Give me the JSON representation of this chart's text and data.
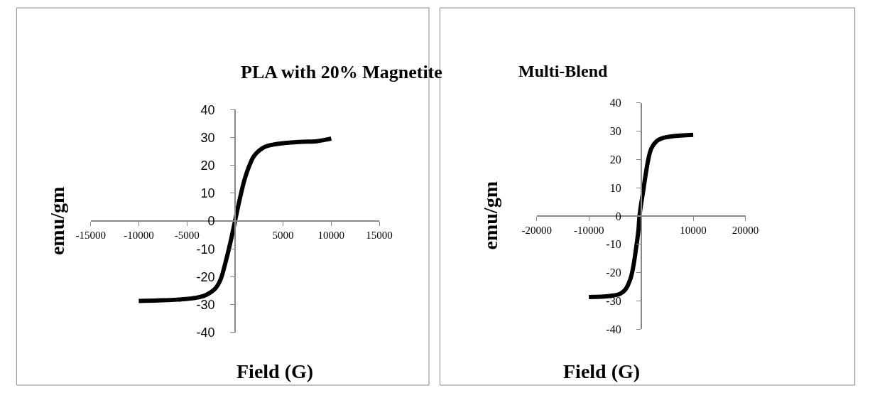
{
  "chart_data": [
    {
      "type": "line",
      "title": "PLA with 20% Magnetite",
      "xlabel": "Field (G)",
      "ylabel": "emu/gm",
      "xlim": [
        -15000,
        15000
      ],
      "xticks": [
        -15000,
        -10000,
        -5000,
        5000,
        10000,
        15000
      ],
      "ylim": [
        -40,
        40
      ],
      "yticks": [
        -40,
        -30,
        -20,
        -10,
        0,
        10,
        20,
        30,
        40
      ],
      "marker": "none",
      "line_style": "solid",
      "series": [
        {
          "color": "#000000",
          "x": [
            -10000,
            -8000,
            -6000,
            -4000,
            -3000,
            -2000,
            -1500,
            -1000,
            -500,
            0,
            500,
            1000,
            1500,
            2000,
            3000,
            4000,
            5000,
            7000,
            8500,
            9500,
            10000
          ],
          "values": [
            -28.7,
            -28.5,
            -28.2,
            -27.5,
            -26.5,
            -24,
            -21,
            -15,
            -8,
            0,
            8,
            15,
            20,
            23.5,
            26.5,
            27.5,
            28,
            28.5,
            28.7,
            29.3,
            29.7
          ]
        }
      ]
    },
    {
      "type": "line",
      "title": "Multi-Blend",
      "xlabel": "Field (G)",
      "ylabel": "emu/gm",
      "xlim": [
        -20000,
        20000
      ],
      "xticks": [
        -20000,
        -10000,
        10000,
        20000
      ],
      "ylim": [
        -40,
        40
      ],
      "yticks": [
        -40,
        -30,
        -20,
        -10,
        0,
        10,
        20,
        30,
        40
      ],
      "marker": "none",
      "line_style": "solid",
      "series": [
        {
          "color": "#000000",
          "x": [
            -10000,
            -6000,
            -4000,
            -3000,
            -2000,
            -1500,
            -1000,
            -500,
            -300,
            500,
            1000,
            1500,
            2000,
            3000,
            4000,
            6000,
            10000
          ],
          "values": [
            -28.7,
            -28.3,
            -27.5,
            -26,
            -22,
            -18,
            -12,
            -5,
            0,
            10,
            16,
            21,
            24,
            26.5,
            27.5,
            28.2,
            28.7
          ]
        }
      ]
    }
  ]
}
